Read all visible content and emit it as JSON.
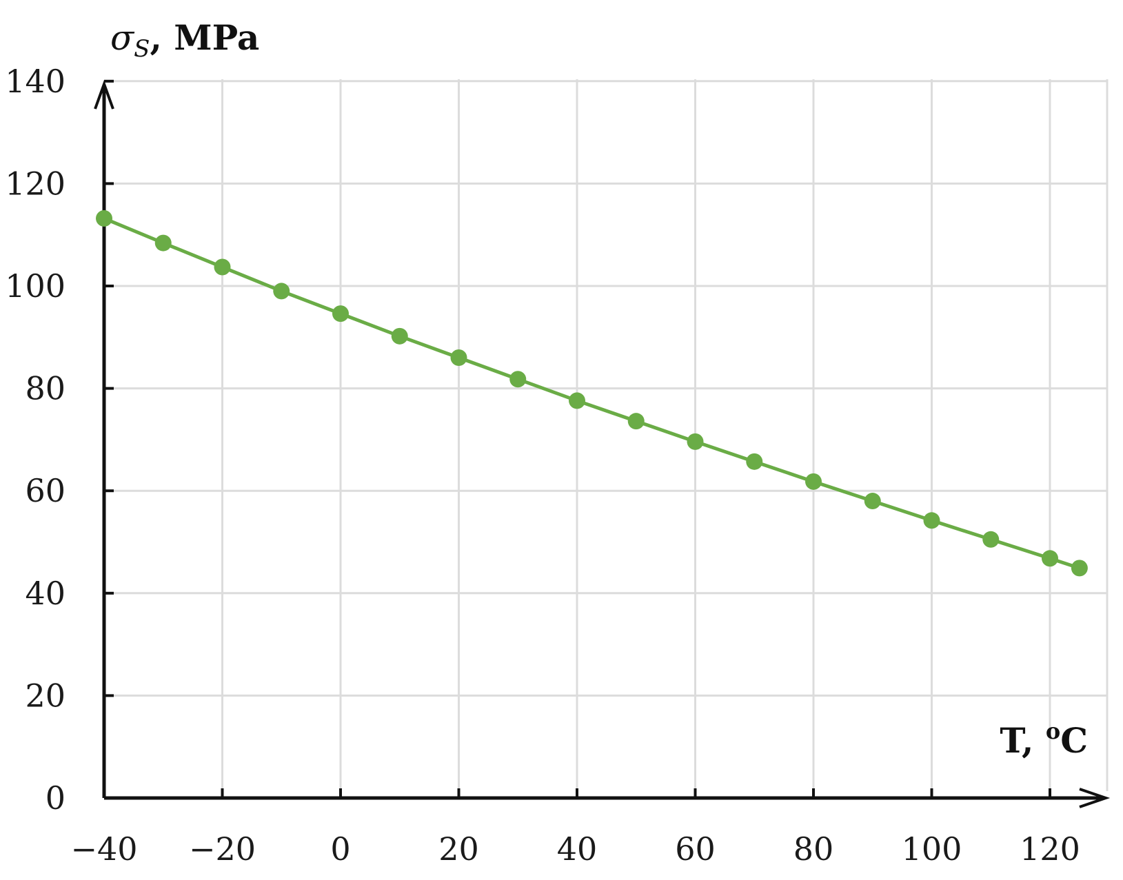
{
  "chart_data": {
    "type": "line",
    "xlabel": "T, ºC",
    "ylabel": "σS, MPa",
    "ylabel_symbol": "σ",
    "ylabel_subscript": "S",
    "ylabel_unit": ", MPa",
    "xlabel_main": "T, ",
    "xlabel_degree": "o",
    "xlabel_unit": "C",
    "xlim": [
      -40,
      125
    ],
    "ylim": [
      0,
      140
    ],
    "x_ticks": [
      -40,
      -20,
      0,
      20,
      40,
      60,
      80,
      100,
      120
    ],
    "x_tick_labels": [
      "−40",
      "−20",
      "0",
      "20",
      "40",
      "60",
      "80",
      "100",
      "120"
    ],
    "y_ticks": [
      0,
      20,
      40,
      60,
      80,
      100,
      120,
      140
    ],
    "y_tick_labels": [
      "0",
      "20",
      "40",
      "60",
      "80",
      "100",
      "120",
      "140"
    ],
    "grid": true,
    "series": [
      {
        "color": "#6aac46",
        "x": [
          -40,
          -30,
          -20,
          -10,
          0,
          10,
          20,
          30,
          40,
          50,
          60,
          70,
          80,
          90,
          100,
          110,
          120,
          125
        ],
        "y": [
          113.2,
          108.4,
          103.7,
          99.0,
          94.6,
          90.2,
          86.0,
          81.8,
          77.6,
          73.6,
          69.6,
          65.7,
          61.8,
          58.0,
          54.2,
          50.5,
          46.8,
          44.9
        ]
      }
    ]
  }
}
